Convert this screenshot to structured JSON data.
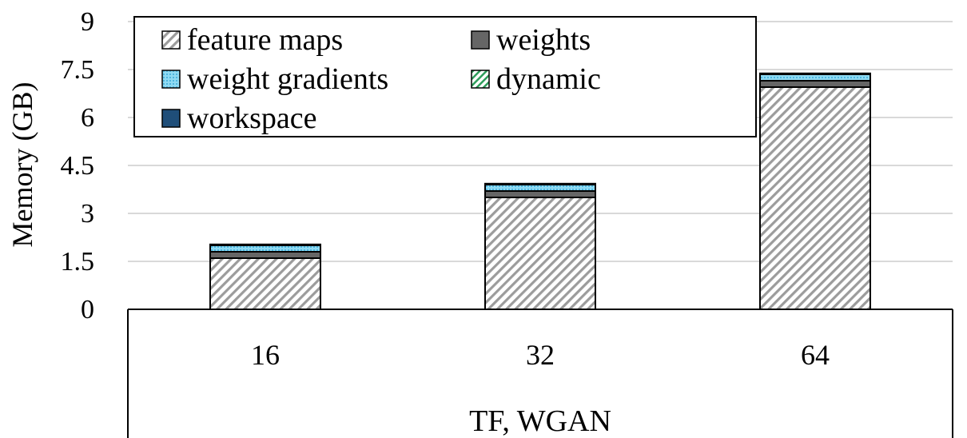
{
  "chart_data": {
    "type": "bar",
    "stacked": true,
    "categories": [
      "16",
      "32",
      "64"
    ],
    "group_label": "TF, WGAN",
    "ylabel": "Memory (GB)",
    "xlabel": "",
    "ylim": [
      0,
      9
    ],
    "yticks": [
      "0",
      "1.5",
      "3",
      "4.5",
      "6",
      "7.5",
      "9"
    ],
    "grid": true,
    "legend_position": "top-left",
    "series": [
      {
        "name": "feature maps",
        "values": [
          1.6,
          3.5,
          6.95
        ],
        "color": "#a6a6a6",
        "pattern": "diagonal-hatch"
      },
      {
        "name": "weights",
        "values": [
          0.2,
          0.2,
          0.2
        ],
        "color": "#666666",
        "pattern": "solid"
      },
      {
        "name": "weight gradients",
        "values": [
          0.2,
          0.2,
          0.2
        ],
        "color": "#7fd3f0",
        "pattern": "dotted"
      },
      {
        "name": "dynamic",
        "values": [
          0.02,
          0.02,
          0.02
        ],
        "color": "#2e9e5b",
        "pattern": "diagonal-hatch"
      },
      {
        "name": "workspace",
        "values": [
          0.01,
          0.01,
          0.01
        ],
        "color": "#1f4e79",
        "pattern": "solid"
      }
    ]
  }
}
